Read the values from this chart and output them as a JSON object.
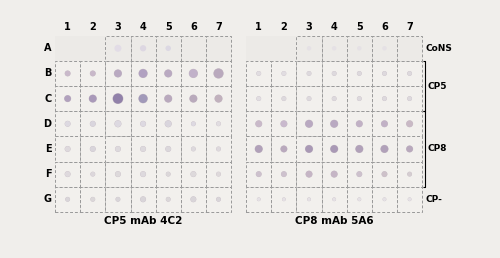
{
  "fig_width": 5.0,
  "fig_height": 2.58,
  "dpi": 100,
  "background_color": "#f0eeeb",
  "grid_color": "#999999",
  "rows": [
    "A",
    "B",
    "C",
    "D",
    "E",
    "F",
    "G"
  ],
  "cols": [
    "1",
    "2",
    "3",
    "4",
    "5",
    "6",
    "7"
  ],
  "label_left": "CP5 mAb 4C2",
  "label_right": "CP8 mAb 5A6",
  "right_annotations": {
    "CoNS": 0,
    "CP5": [
      1,
      2
    ],
    "CP8": [
      3,
      4,
      5
    ],
    "CP-": 6
  },
  "panel1": {
    "A": {
      "sizes": [
        0,
        0,
        0.28,
        0.25,
        0.22,
        0,
        0
      ],
      "colors": [
        "none",
        "none",
        "#e2dce6",
        "#ddd7e2",
        "#dcd8e3",
        "none",
        "none"
      ],
      "ring": [
        false,
        false,
        false,
        false,
        false,
        false,
        false
      ]
    },
    "B": {
      "sizes": [
        0.22,
        0.22,
        0.3,
        0.34,
        0.3,
        0.34,
        0.38
      ],
      "colors": [
        "#c9b9ca",
        "#c8b8c9",
        "#b9a9c1",
        "#b1a1c1",
        "#b9a9c1",
        "#c1b1c9",
        "#b9a9bd"
      ],
      "ring": [
        true,
        true,
        true,
        true,
        true,
        true,
        true
      ]
    },
    "C": {
      "sizes": [
        0.26,
        0.3,
        0.4,
        0.35,
        0.3,
        0.3,
        0.3
      ],
      "colors": [
        "#b1a1bd",
        "#a999b9",
        "#9181a9",
        "#a199b9",
        "#b9a9bd",
        "#b9aabc",
        "#c1b1bd"
      ],
      "ring": [
        true,
        true,
        true,
        true,
        true,
        true,
        true
      ]
    },
    "D": {
      "sizes": [
        0.22,
        0.22,
        0.26,
        0.22,
        0.26,
        0.18,
        0.18
      ],
      "colors": [
        "#ddd9e1",
        "#d9d5dd",
        "#ddd9e1",
        "#ddd9e1",
        "#d9d5dd",
        "#ddd9e1",
        "#e1dde1"
      ],
      "ring": [
        true,
        true,
        true,
        true,
        true,
        true,
        true
      ]
    },
    "E": {
      "sizes": [
        0.22,
        0.22,
        0.22,
        0.22,
        0.22,
        0.18,
        0.18
      ],
      "colors": [
        "#ded9dd",
        "#d9d5db",
        "#ddd9dd",
        "#ddd9dd",
        "#dbd7db",
        "#ddd9dd",
        "#ded9dd"
      ],
      "ring": [
        true,
        true,
        true,
        true,
        true,
        true,
        true
      ]
    },
    "F": {
      "sizes": [
        0.22,
        0.18,
        0.22,
        0.22,
        0.18,
        0.22,
        0.18
      ],
      "colors": [
        "#ded9dd",
        "#dcd7db",
        "#ddd9db",
        "#ddd9dd",
        "#dbd7d9",
        "#ddd9db",
        "#ded9db"
      ],
      "ring": [
        true,
        true,
        true,
        true,
        true,
        true,
        true
      ]
    },
    "G": {
      "sizes": [
        0.18,
        0.18,
        0.18,
        0.22,
        0.18,
        0.22,
        0.18
      ],
      "colors": [
        "#d9d5d9",
        "#dbd7d9",
        "#d9d5d9",
        "#d9d5d9",
        "#dbd7d9",
        "#d9d5d9",
        "#d9d5d9"
      ],
      "ring": [
        true,
        true,
        true,
        true,
        true,
        true,
        true
      ]
    }
  },
  "panel2": {
    "A": {
      "sizes": [
        0,
        0,
        0.18,
        0.18,
        0.18,
        0.18,
        0
      ],
      "colors": [
        "none",
        "none",
        "#e5e1e5",
        "#e5e1e5",
        "#e5e1e5",
        "#e5e1e5",
        "none"
      ],
      "ring": [
        false,
        false,
        false,
        false,
        false,
        false,
        false
      ]
    },
    "B": {
      "sizes": [
        0.18,
        0.18,
        0.18,
        0.18,
        0.18,
        0.18,
        0.18
      ],
      "colors": [
        "#e1dde1",
        "#e1dde1",
        "#ddd9dd",
        "#ddd9dd",
        "#ddd9dd",
        "#ddd9dd",
        "#ddd9dd"
      ],
      "ring": [
        true,
        true,
        true,
        true,
        true,
        true,
        true
      ]
    },
    "C": {
      "sizes": [
        0.18,
        0.18,
        0.18,
        0.18,
        0.18,
        0.18,
        0.18
      ],
      "colors": [
        "#e1dde1",
        "#ddd9dd",
        "#ddd9dd",
        "#ddd9dd",
        "#ddd9dd",
        "#ddd9dd",
        "#ddd9dd"
      ],
      "ring": [
        true,
        true,
        true,
        true,
        true,
        true,
        true
      ]
    },
    "D": {
      "sizes": [
        0.26,
        0.26,
        0.3,
        0.3,
        0.26,
        0.26,
        0.26
      ],
      "colors": [
        "#c9b9c9",
        "#c9b9cd",
        "#b9a9c1",
        "#b9a9c1",
        "#c1b1c5",
        "#c1b1c5",
        "#c9b9c5"
      ],
      "ring": [
        true,
        true,
        true,
        true,
        true,
        true,
        true
      ]
    },
    "E": {
      "sizes": [
        0.3,
        0.26,
        0.3,
        0.3,
        0.3,
        0.3,
        0.26
      ],
      "colors": [
        "#b1a1b9",
        "#b9a9bd",
        "#a999b5",
        "#a999b5",
        "#b1a1b9",
        "#b1a1b9",
        "#b9a9bd"
      ],
      "ring": [
        true,
        true,
        true,
        true,
        true,
        true,
        true
      ]
    },
    "F": {
      "sizes": [
        0.22,
        0.22,
        0.26,
        0.26,
        0.22,
        0.22,
        0.18
      ],
      "colors": [
        "#cdc1cd",
        "#cdc1cd",
        "#c5b5c5",
        "#c5b5c5",
        "#cdc1cd",
        "#cdc1c9",
        "#d5cdd1"
      ],
      "ring": [
        true,
        true,
        true,
        true,
        true,
        true,
        true
      ]
    },
    "G": {
      "sizes": [
        0.14,
        0.14,
        0.14,
        0.14,
        0.14,
        0.14,
        0.14
      ],
      "colors": [
        "#e5e1e5",
        "#e5e1e5",
        "#e5e1e5",
        "#e5e1e5",
        "#e5e1e5",
        "#e5e1e5",
        "#e5e1e5"
      ],
      "ring": [
        true,
        true,
        true,
        true,
        true,
        true,
        true
      ]
    }
  },
  "cell_bg_A": "#eceae7",
  "cell_bg": "#f2f0ed",
  "ring_color": "#c8bec6"
}
